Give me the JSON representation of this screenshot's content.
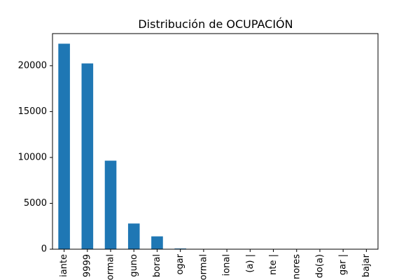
{
  "chart_data": {
    "type": "bar",
    "title": "Distribución de OCUPACIÓN",
    "xlabel": "",
    "ylabel": "",
    "categories": [
      "iante",
      "9999",
      "ormal",
      "guno",
      "boral",
      "ogar",
      "ormal",
      "ional",
      "(a) |",
      "nte |",
      "nores",
      "do(a)",
      "gar |",
      "bajar"
    ],
    "values": [
      22400,
      20250,
      9650,
      2800,
      1400,
      80,
      20,
      10,
      8,
      5,
      4,
      3,
      2,
      1
    ],
    "ylim": [
      0,
      23500
    ],
    "yticks": [
      0,
      5000,
      10000,
      15000,
      20000
    ],
    "grid": false,
    "legend": "none",
    "bar_color": "#1f77b4"
  }
}
